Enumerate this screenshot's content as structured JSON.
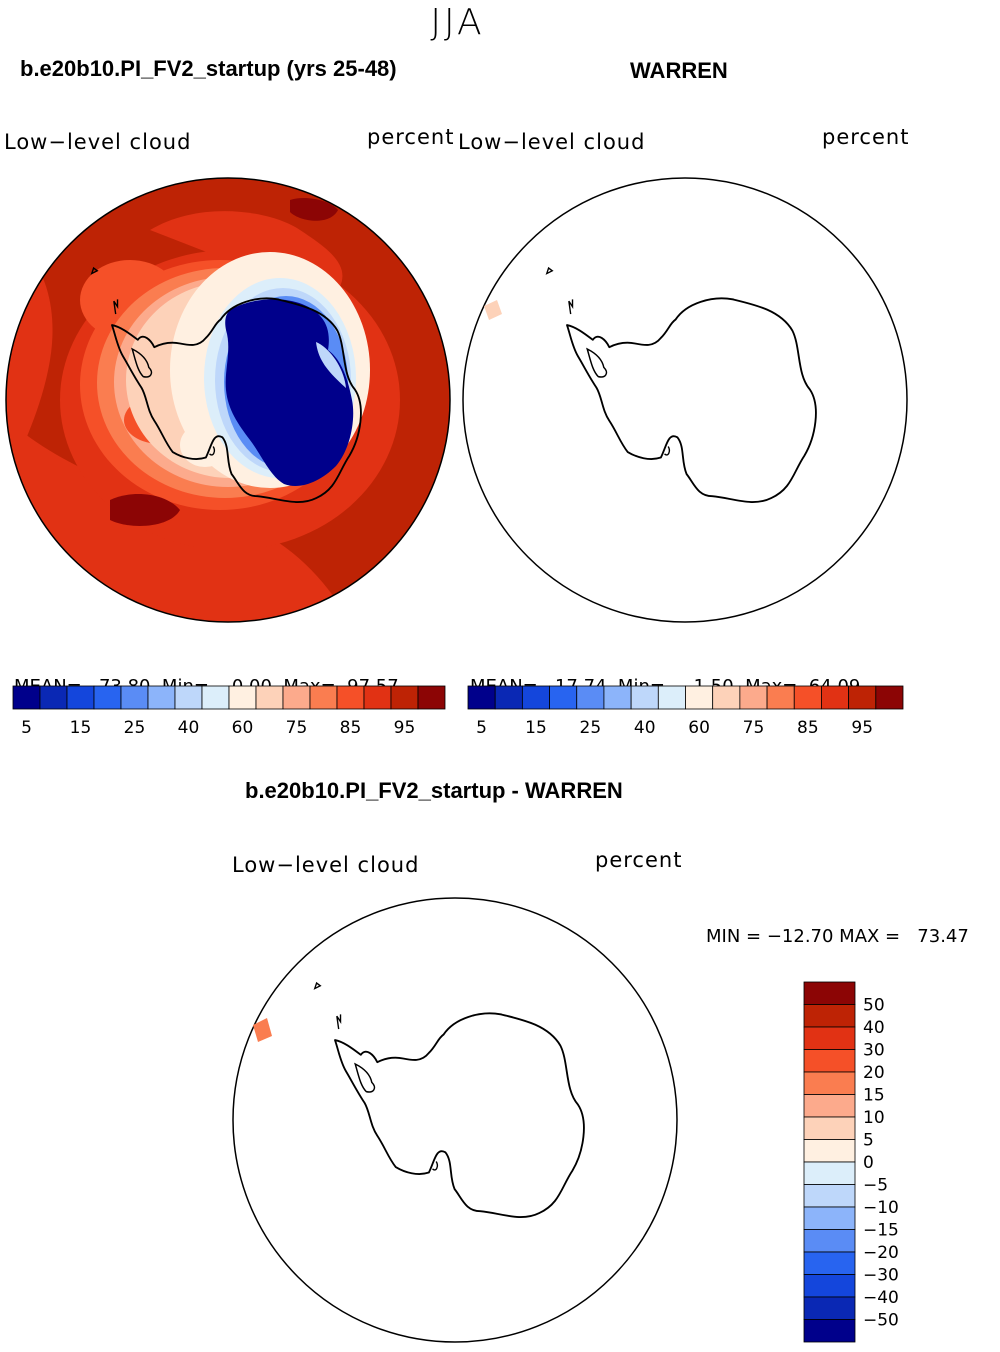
{
  "figure": {
    "season": "JJA",
    "panel_model": {
      "title": "b.e20b10.PI_FV2_startup (yrs 25-48)",
      "variable": "Low−level cloud",
      "units": "percent",
      "stats": {
        "mean_label": "MEAN=",
        "mean": "73.80",
        "min_label": "Min=",
        "min": "0.00",
        "max_label": "Max=",
        "max": "97.57"
      }
    },
    "panel_obs": {
      "title": "WARREN",
      "variable": "Low−level cloud",
      "units": "percent",
      "stats": {
        "mean_label": "MEAN=",
        "mean": "17.74",
        "min_label": "Min=",
        "min": "1.50",
        "max_label": "Max=",
        "max": "64.09"
      }
    },
    "panel_diff": {
      "title": "b.e20b10.PI_FV2_startup - WARREN",
      "variable": "Low−level cloud",
      "units": "percent",
      "minmax": "MIN = −12.70 MAX =   73.47"
    }
  },
  "chart_data": [
    {
      "type": "heatmap",
      "title": "b.e20b10.PI_FV2_startup (yrs 25-48)",
      "projection": "south-polar-stereographic",
      "mean": 73.8,
      "min": 0.0,
      "max": 97.57,
      "colorbar": {
        "orientation": "horizontal",
        "tick_labels": [
          "5",
          "15",
          "25",
          "40",
          "60",
          "75",
          "85",
          "95"
        ],
        "colors": [
          "#00008b",
          "#0a28b4",
          "#1446dc",
          "#2864f0",
          "#5a8cf5",
          "#8cb4fa",
          "#bed7fa",
          "#dceefa",
          "#fff0e1",
          "#fdd2b9",
          "#fcaa8c",
          "#fa7d50",
          "#f55028",
          "#e13214",
          "#be2305",
          "#8c0505"
        ]
      }
    },
    {
      "type": "heatmap",
      "title": "WARREN",
      "projection": "south-polar-stereographic",
      "mean": 17.74,
      "min": 1.5,
      "max": 64.09,
      "colorbar": {
        "orientation": "horizontal",
        "tick_labels": [
          "5",
          "15",
          "25",
          "40",
          "60",
          "75",
          "85",
          "95"
        ],
        "colors": [
          "#00008b",
          "#0a28b4",
          "#1446dc",
          "#2864f0",
          "#5a8cf5",
          "#8cb4fa",
          "#bed7fa",
          "#dceefa",
          "#fff0e1",
          "#fdd2b9",
          "#fcaa8c",
          "#fa7d50",
          "#f55028",
          "#e13214",
          "#be2305",
          "#8c0505"
        ]
      }
    },
    {
      "type": "heatmap",
      "title": "b.e20b10.PI_FV2_startup - WARREN",
      "projection": "south-polar-stereographic",
      "min": -12.7,
      "max": 73.47,
      "colorbar": {
        "orientation": "vertical",
        "tick_labels": [
          "50",
          "40",
          "30",
          "20",
          "15",
          "10",
          "5",
          "0",
          "−5",
          "−10",
          "−15",
          "−20",
          "−30",
          "−40",
          "−50"
        ],
        "colors": [
          "#8c0505",
          "#be2305",
          "#e13214",
          "#f55028",
          "#fa7d50",
          "#fcaa8c",
          "#fdd2b9",
          "#fff0e1",
          "#dceefa",
          "#bed7fa",
          "#8cb4fa",
          "#5a8cf5",
          "#2864f0",
          "#1446dc",
          "#0a28b4",
          "#00008b"
        ]
      }
    }
  ]
}
